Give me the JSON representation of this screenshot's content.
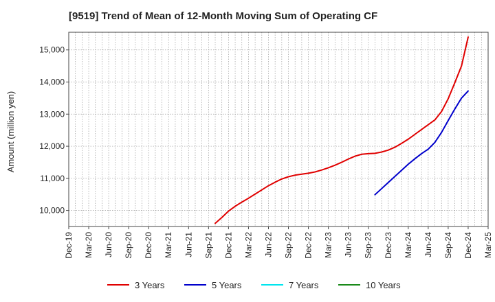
{
  "chart_data": {
    "type": "line",
    "title": "[9519]  Trend of Mean of 12-Month Moving Sum of Operating CF",
    "xlabel": "",
    "ylabel": "Amount (million yen)",
    "x_ticks": [
      "Dec-19",
      "Mar-20",
      "Jun-20",
      "Sep-20",
      "Dec-20",
      "Mar-21",
      "Jun-21",
      "Sep-21",
      "Dec-21",
      "Mar-22",
      "Jun-22",
      "Sep-22",
      "Dec-22",
      "Mar-23",
      "Jun-23",
      "Sep-23",
      "Dec-23",
      "Mar-24",
      "Jun-24",
      "Sep-24",
      "Dec-24",
      "Mar-25"
    ],
    "y_ticks": [
      10000,
      11000,
      12000,
      13000,
      14000,
      15000
    ],
    "y_tick_labels": [
      "10,000",
      "11,000",
      "12,000",
      "13,000",
      "14,000",
      "15,000"
    ],
    "ylim": [
      9500,
      15550
    ],
    "grid": true,
    "legend_position": "bottom",
    "series": [
      {
        "name": "3 Years",
        "color": "#e00000",
        "x": [
          "Oct-21",
          "Nov-21",
          "Dec-21",
          "Jan-22",
          "Feb-22",
          "Mar-22",
          "Apr-22",
          "May-22",
          "Jun-22",
          "Jul-22",
          "Aug-22",
          "Sep-22",
          "Oct-22",
          "Nov-22",
          "Dec-22",
          "Jan-23",
          "Feb-23",
          "Mar-23",
          "Apr-23",
          "May-23",
          "Jun-23",
          "Jul-23",
          "Aug-23",
          "Sep-23",
          "Oct-23",
          "Nov-23",
          "Dec-23",
          "Jan-24",
          "Feb-24",
          "Mar-24",
          "Apr-24",
          "May-24",
          "Jun-24",
          "Jul-24",
          "Aug-24",
          "Sep-24",
          "Oct-24",
          "Nov-24",
          "Dec-24"
        ],
        "values": [
          9600,
          9780,
          9980,
          10130,
          10260,
          10380,
          10510,
          10640,
          10770,
          10880,
          10980,
          11050,
          11100,
          11130,
          11160,
          11200,
          11260,
          11330,
          11410,
          11500,
          11600,
          11690,
          11750,
          11770,
          11780,
          11820,
          11880,
          11970,
          12090,
          12220,
          12370,
          12520,
          12670,
          12820,
          13080,
          13480,
          13980,
          14500,
          15400
        ]
      },
      {
        "name": "5 Years",
        "color": "#0000cc",
        "x": [
          "Oct-23",
          "Nov-23",
          "Dec-23",
          "Jan-24",
          "Feb-24",
          "Mar-24",
          "Apr-24",
          "May-24",
          "Jun-24",
          "Jul-24",
          "Aug-24",
          "Sep-24",
          "Oct-24",
          "Nov-24",
          "Dec-24"
        ],
        "values": [
          10490,
          10680,
          10870,
          11060,
          11250,
          11440,
          11610,
          11770,
          11910,
          12120,
          12430,
          12800,
          13160,
          13500,
          13720
        ]
      },
      {
        "name": "7 Years",
        "color": "#00e5ee",
        "x": [],
        "values": []
      },
      {
        "name": "10 Years",
        "color": "#1a8a1a",
        "x": [],
        "values": []
      }
    ]
  }
}
